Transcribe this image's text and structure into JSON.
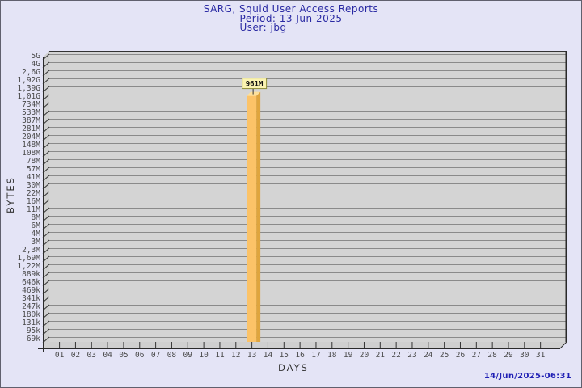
{
  "title": {
    "line1": "SARG, Squid User Access Reports",
    "line2": "Period: 13 Jun 2025",
    "line3": "User: jbg"
  },
  "footer": {
    "generated": "14/Jun/2025-06:31"
  },
  "chart_data": {
    "type": "bar",
    "title": "SARG, Squid User Access Reports",
    "subtitle": "Period: 13 Jun 2025 — User: jbg",
    "xlabel": "DAYS",
    "ylabel": "BYTES",
    "y_scale": "log",
    "y_min": 69000,
    "y_max": 5000000000,
    "grid": true,
    "y_tick_labels": [
      "5G",
      "4G",
      "2,6G",
      "1,92G",
      "1,39G",
      "1,01G",
      "734M",
      "533M",
      "387M",
      "281M",
      "204M",
      "148M",
      "108M",
      "78M",
      "57M",
      "41M",
      "30M",
      "22M",
      "16M",
      "11M",
      "8M",
      "6M",
      "4M",
      "3M",
      "2,3M",
      "1,69M",
      "1,22M",
      "889k",
      "646k",
      "469k",
      "341k",
      "247k",
      "180k",
      "131k",
      "95k",
      "69k"
    ],
    "x_tick_labels": [
      "01",
      "02",
      "03",
      "04",
      "05",
      "06",
      "07",
      "08",
      "09",
      "10",
      "11",
      "12",
      "13",
      "14",
      "15",
      "16",
      "17",
      "18",
      "19",
      "20",
      "21",
      "22",
      "23",
      "24",
      "25",
      "26",
      "27",
      "28",
      "29",
      "30",
      "31"
    ],
    "series": [
      {
        "name": "jbg",
        "points": [
          {
            "day": "13",
            "value_bytes": 961000000,
            "label": "961M"
          }
        ]
      }
    ]
  },
  "colors": {
    "background": "#e4e4f6",
    "plot_bg": "#d4d4d4",
    "wall": "#cfcfcf",
    "grid": "#8a8a8a",
    "axis": "#2a2a2a",
    "frame": "#333333",
    "tick_text": "#4a4a4a",
    "axis_title_text": "#333333",
    "bar_front": "#fcc368",
    "bar_side": "#dfa53e",
    "bar_top": "#fde09a",
    "bar_label_bg": "#faf3b0",
    "bar_label_border": "#8c8c3a",
    "bar_label_text": "#111111",
    "title_text": "#2929a3",
    "timestamp_text": "#1f1fb4"
  }
}
